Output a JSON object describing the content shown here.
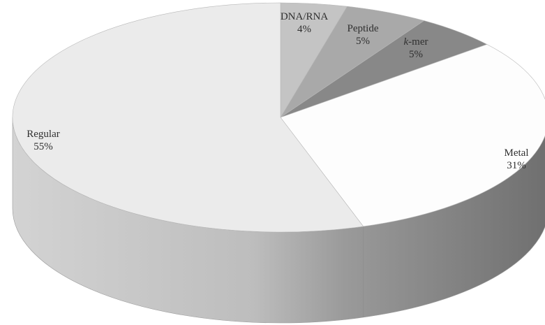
{
  "chart_data": {
    "type": "pie",
    "title": "",
    "slices": [
      {
        "label": "DNA/RNA",
        "percent_label": "4%",
        "value": 4,
        "color": "#c4c4c4"
      },
      {
        "label": "Peptide",
        "percent_label": "5%",
        "value": 5,
        "color": "#a9a9a9"
      },
      {
        "label": "k-mer",
        "label_prefix": "k",
        "label_suffix": "-mer",
        "percent_label": "5%",
        "value": 5,
        "color": "#888888"
      },
      {
        "label": "Metal",
        "percent_label": "31%",
        "value": 31,
        "color": "#fdfdfd"
      },
      {
        "label": "Regular",
        "percent_label": "55%",
        "value": 55,
        "color": "#ebebeb"
      }
    ],
    "style": "3d",
    "legend": "none"
  }
}
